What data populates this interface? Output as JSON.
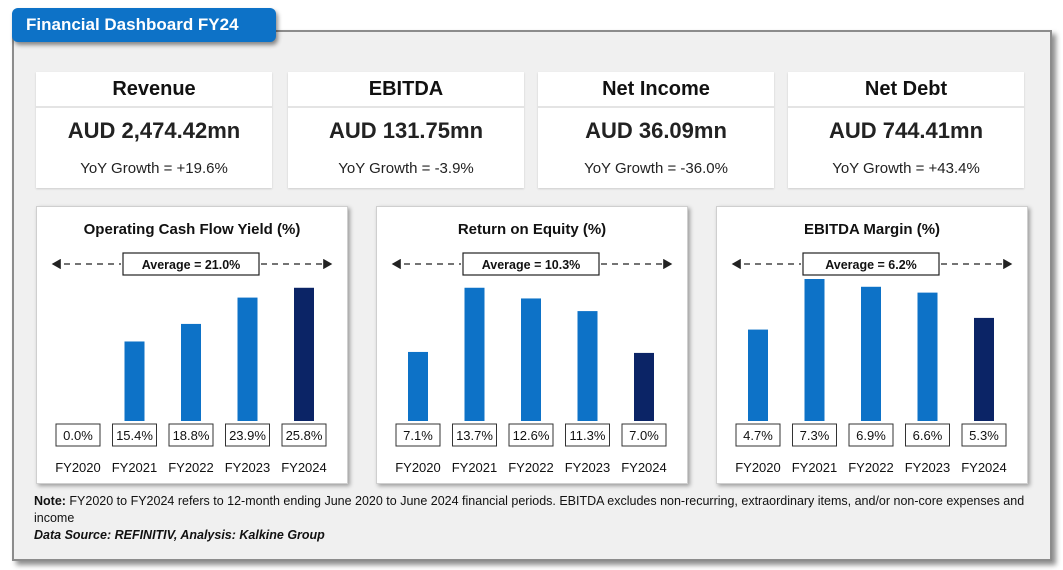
{
  "header": {
    "title": "Financial Dashboard FY24"
  },
  "kpis": [
    {
      "title": "Revenue",
      "value": "AUD 2,474.42mn",
      "growth": "YoY Growth = +19.6%"
    },
    {
      "title": "EBITDA",
      "value": "AUD 131.75mn",
      "growth": "YoY Growth = -3.9%"
    },
    {
      "title": "Net Income",
      "value": "AUD 36.09mn",
      "growth": "YoY Growth = -36.0%"
    },
    {
      "title": "Net Debt",
      "value": "AUD 744.41mn",
      "growth": "YoY Growth = +43.4%"
    }
  ],
  "colors": {
    "bar": "#0d72c7",
    "highlight": "#0b2466",
    "tab": "#0d72c7"
  },
  "chart_data": [
    {
      "type": "bar",
      "title": "Operating Cash Flow Yield (%)",
      "categories": [
        "FY2020",
        "FY2021",
        "FY2022",
        "FY2023",
        "FY2024"
      ],
      "values": [
        0.0,
        15.4,
        18.8,
        23.9,
        25.8
      ],
      "labels": [
        "0.0%",
        "15.4%",
        "18.8%",
        "23.9%",
        "25.8%"
      ],
      "average_label": "Average = 21.0%",
      "highlight_index": 4,
      "ylim": [
        0,
        27.5
      ]
    },
    {
      "type": "bar",
      "title": "Return on Equity (%)",
      "categories": [
        "FY2020",
        "FY2021",
        "FY2022",
        "FY2023",
        "FY2024"
      ],
      "values": [
        7.1,
        13.7,
        12.6,
        11.3,
        7.0
      ],
      "labels": [
        "7.1%",
        "13.7%",
        "12.6%",
        "11.3%",
        "7.0%"
      ],
      "average_label": "Average = 10.3%",
      "highlight_index": 4,
      "ylim": [
        0,
        14.6
      ]
    },
    {
      "type": "bar",
      "title": "EBITDA Margin (%)",
      "categories": [
        "FY2020",
        "FY2021",
        "FY2022",
        "FY2023",
        "FY2024"
      ],
      "values": [
        4.7,
        7.3,
        6.9,
        6.6,
        5.3
      ],
      "labels": [
        "4.7%",
        "7.3%",
        "6.9%",
        "6.6%",
        "5.3%"
      ],
      "average_label": "Average = 6.2%",
      "highlight_index": 4,
      "ylim": [
        0,
        7.3
      ]
    }
  ],
  "footer": {
    "note_label": "Note:",
    "note_text": " FY2020 to FY2024 refers to 12-month ending June 2020 to June 2024 financial periods. EBITDA excludes non-recurring, extraordinary items, and/or non-core expenses and income",
    "source": "Data Source: REFINITIV, Analysis: Kalkine Group"
  }
}
